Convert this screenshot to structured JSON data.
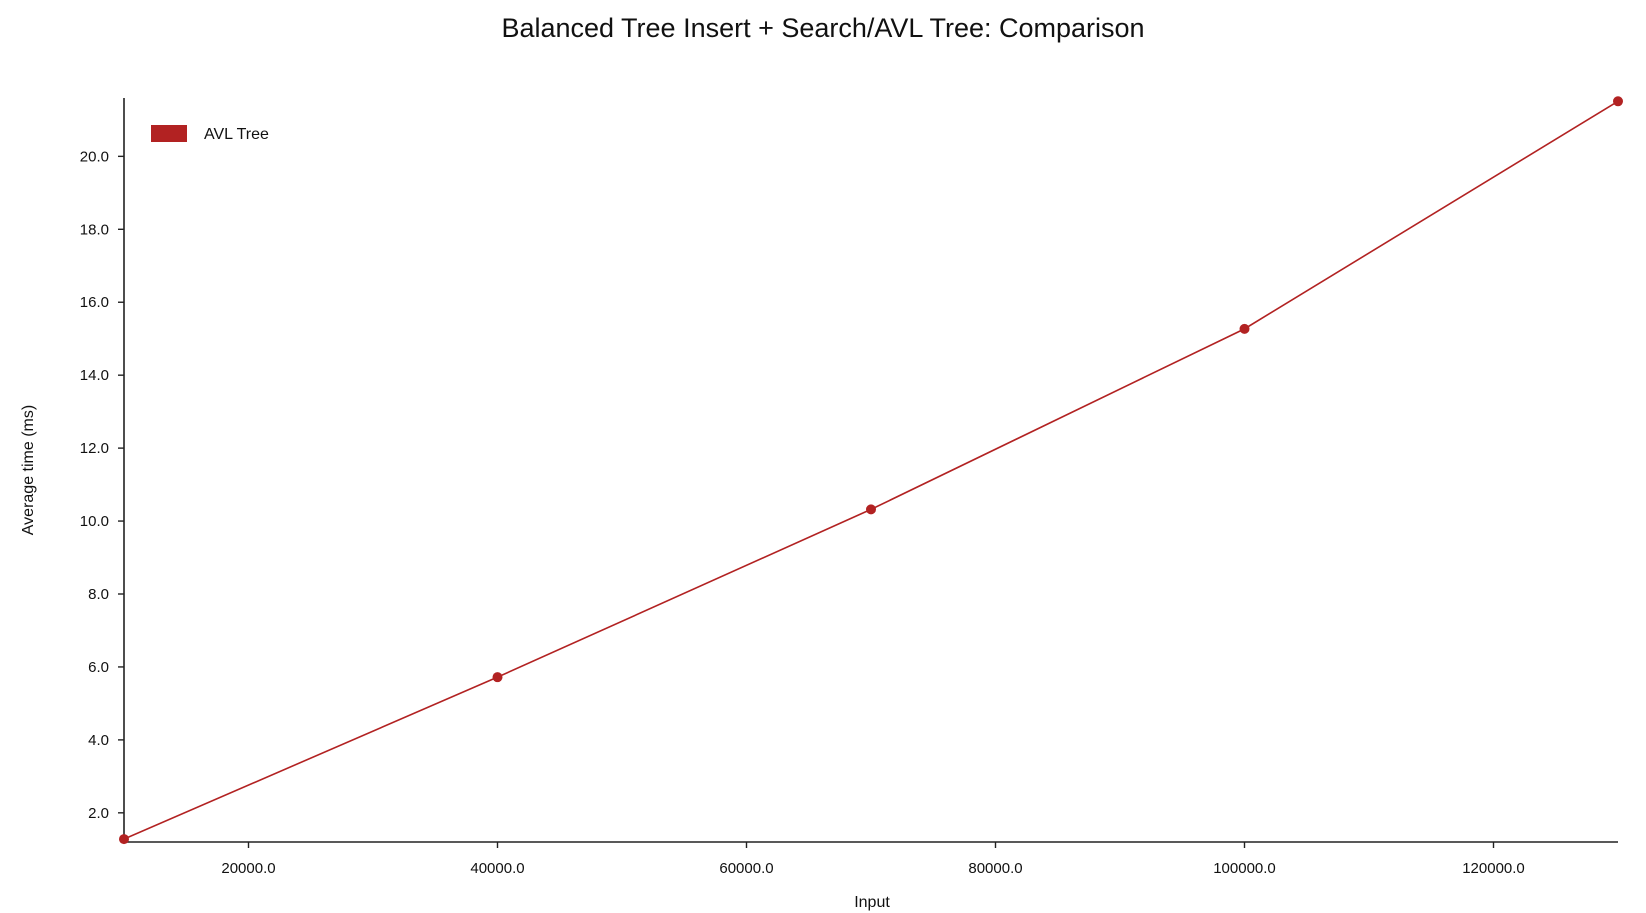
{
  "chart_data": {
    "type": "line",
    "title": "Balanced Tree Insert + Search/AVL Tree: Comparison",
    "xlabel": "Input",
    "ylabel": "Average time (ms)",
    "xlim": [
      10000,
      130000
    ],
    "ylim": [
      1.2,
      21.6
    ],
    "x_ticks": [
      20000,
      40000,
      60000,
      80000,
      100000,
      120000
    ],
    "x_tick_labels": [
      "20000.0",
      "40000.0",
      "60000.0",
      "80000.0",
      "100000.0",
      "120000.0"
    ],
    "y_ticks": [
      2,
      4,
      6,
      8,
      10,
      12,
      14,
      16,
      18,
      20
    ],
    "y_tick_labels": [
      "2.0",
      "4.0",
      "6.0",
      "8.0",
      "10.0",
      "12.0",
      "14.0",
      "16.0",
      "18.0",
      "20.0"
    ],
    "grid": false,
    "legend_position": "top-left",
    "series": [
      {
        "name": "AVL Tree",
        "color": "#b22222",
        "x": [
          10000,
          40000,
          70000,
          100000,
          130000
        ],
        "y": [
          1.28,
          5.72,
          10.32,
          15.27,
          21.51
        ]
      }
    ]
  }
}
